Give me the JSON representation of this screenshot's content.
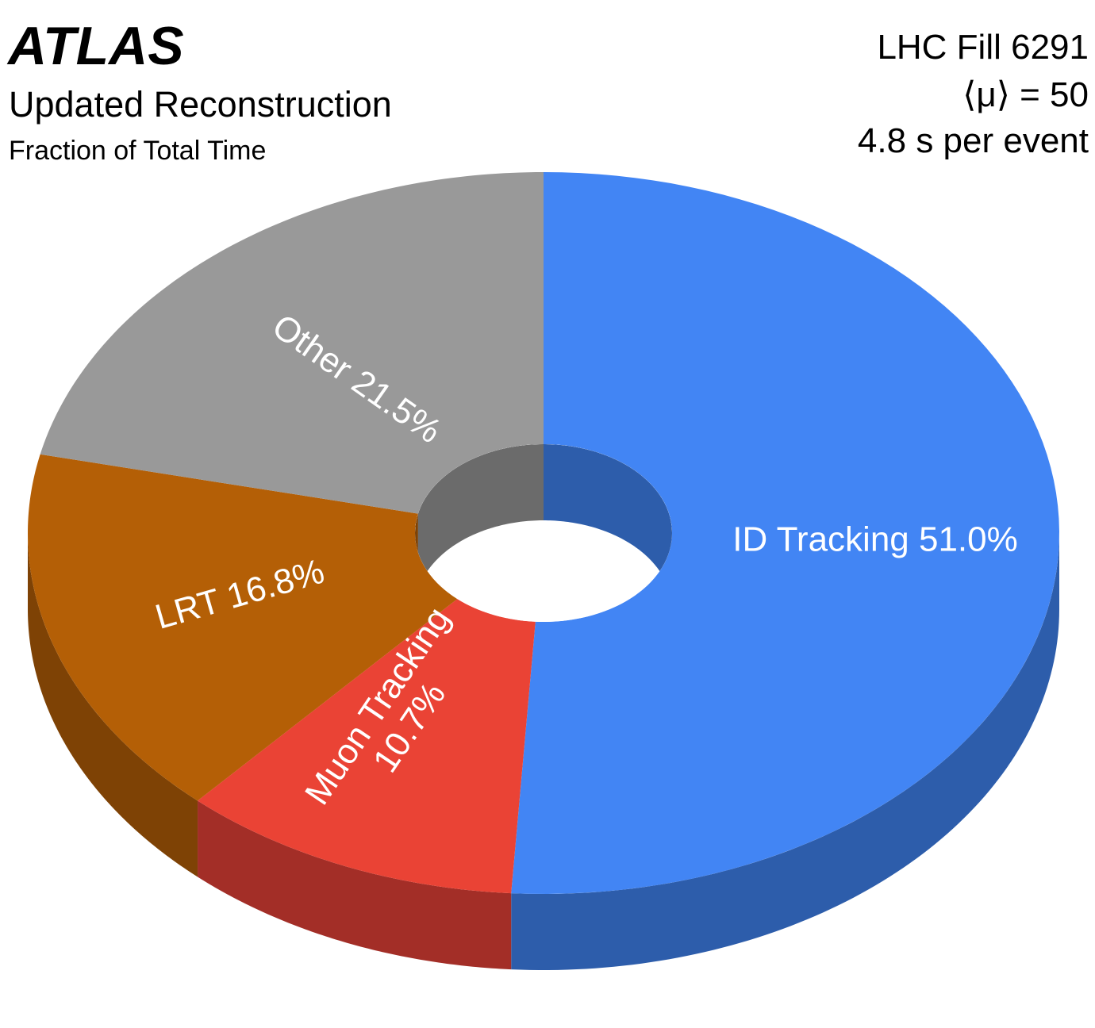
{
  "header": {
    "atlas": "ATLAS",
    "subtitle": "Updated Reconstruction",
    "caption": "Fraction of Total Time",
    "info": [
      "LHC Fill 6291",
      "⟨μ⟩ = 50",
      "4.8 s per event"
    ]
  },
  "chart_data": {
    "type": "pie",
    "style": "3d-donut",
    "title": "Fraction of Total Time",
    "unit": "%",
    "slices": [
      {
        "label": "ID Tracking",
        "value": 51.0,
        "text": "ID Tracking 51.0%",
        "color": "#4285f4",
        "side_color": "#2d5dab"
      },
      {
        "label": "Muon Tracking",
        "value": 10.7,
        "text_lines": [
          "Muon Tracking",
          "10.7%"
        ],
        "color": "#ea4335",
        "side_color": "#a32e27"
      },
      {
        "label": "LRT",
        "value": 16.8,
        "text": "LRT 16.8%",
        "color": "#b45f06",
        "side_color": "#7e4205"
      },
      {
        "label": "Other",
        "value": 21.5,
        "text": "Other 21.5%",
        "color": "#999999",
        "side_color": "#6b6b6b"
      }
    ]
  }
}
